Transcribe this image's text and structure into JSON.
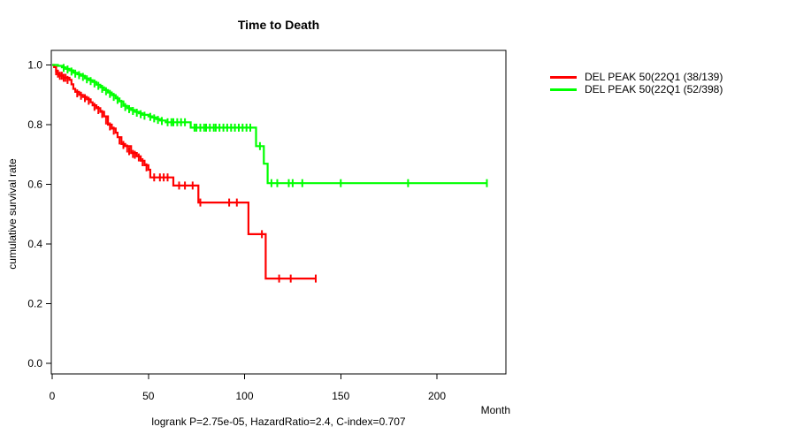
{
  "title": "Time to Death",
  "axes": {
    "x_label": "Month",
    "y_label": "cumulative survival rate"
  },
  "caption": "logrank P=2.75e-05, HazardRatio=2.4, C-index=0.707",
  "legend": {
    "position": "top-right",
    "items": [
      {
        "label": "DEL PEAK 50(22Q1 (38/139)",
        "color": "#ff0000"
      },
      {
        "label": "DEL PEAK 50(22Q1 (52/398)",
        "color": "#00ff00"
      }
    ]
  },
  "colors": {
    "background": "#ffffff",
    "axis": "#000000",
    "curve_group1": "#ff0000",
    "curve_group2": "#00ff00"
  },
  "chart_data": {
    "type": "line",
    "subtype": "kaplan-meier-step",
    "title": "Time to Death",
    "xlabel": "Month",
    "ylabel": "cumulative survival rate",
    "xlim": [
      0,
      236
    ],
    "ylim": [
      0,
      1.04
    ],
    "x_ticks": [
      0,
      50,
      100,
      150,
      200
    ],
    "y_ticks": [
      1.0,
      0.8,
      0.6,
      0.4,
      0.2,
      0.0
    ],
    "grid": false,
    "legend_position": "top-right",
    "annotation": "logrank P=2.75e-05, HazardRatio=2.4, C-index=0.707",
    "series": [
      {
        "name": "DEL PEAK 50(22Q1 (38/139)",
        "events_total": "38/139",
        "color": "#ff0000",
        "steps": [
          [
            0,
            1.0
          ],
          [
            1,
            0.993
          ],
          [
            2,
            0.979
          ],
          [
            3,
            0.971
          ],
          [
            4,
            0.964
          ],
          [
            6,
            0.957
          ],
          [
            9,
            0.95
          ],
          [
            10,
            0.935
          ],
          [
            11,
            0.92
          ],
          [
            12,
            0.91
          ],
          [
            14,
            0.9
          ],
          [
            16,
            0.893
          ],
          [
            18,
            0.885
          ],
          [
            20,
            0.875
          ],
          [
            21,
            0.865
          ],
          [
            23,
            0.855
          ],
          [
            25,
            0.843
          ],
          [
            27,
            0.828
          ],
          [
            29,
            0.8
          ],
          [
            31,
            0.787
          ],
          [
            33,
            0.773
          ],
          [
            34,
            0.758
          ],
          [
            36,
            0.735
          ],
          [
            38,
            0.728
          ],
          [
            41,
            0.705
          ],
          [
            44,
            0.694
          ],
          [
            46,
            0.679
          ],
          [
            48,
            0.664
          ],
          [
            50,
            0.649
          ],
          [
            51,
            0.623
          ],
          [
            63,
            0.596
          ],
          [
            76,
            0.539
          ],
          [
            102,
            0.433
          ],
          [
            111,
            0.284
          ],
          [
            137,
            0.284
          ]
        ],
        "censors": [
          [
            2,
            0.979
          ],
          [
            3,
            0.971
          ],
          [
            4,
            0.964
          ],
          [
            5,
            0.964
          ],
          [
            6,
            0.957
          ],
          [
            7,
            0.957
          ],
          [
            8,
            0.95
          ],
          [
            13,
            0.905
          ],
          [
            15,
            0.897
          ],
          [
            17,
            0.889
          ],
          [
            19,
            0.88
          ],
          [
            22,
            0.86
          ],
          [
            24,
            0.849
          ],
          [
            26,
            0.836
          ],
          [
            28,
            0.814
          ],
          [
            30,
            0.794
          ],
          [
            32,
            0.78
          ],
          [
            35,
            0.747
          ],
          [
            37,
            0.732
          ],
          [
            39,
            0.72
          ],
          [
            40,
            0.711
          ],
          [
            42,
            0.702
          ],
          [
            43,
            0.699
          ],
          [
            45,
            0.69
          ],
          [
            47,
            0.674
          ],
          [
            49,
            0.657
          ],
          [
            53,
            0.623
          ],
          [
            56,
            0.623
          ],
          [
            58,
            0.623
          ],
          [
            60,
            0.623
          ],
          [
            66,
            0.596
          ],
          [
            69,
            0.596
          ],
          [
            73,
            0.596
          ],
          [
            77,
            0.539
          ],
          [
            92,
            0.539
          ],
          [
            96,
            0.539
          ],
          [
            109,
            0.433
          ],
          [
            118,
            0.284
          ],
          [
            124,
            0.284
          ],
          [
            137,
            0.284
          ]
        ]
      },
      {
        "name": "DEL PEAK 50(22Q1 (52/398)",
        "events_total": "52/398",
        "color": "#00ff00",
        "steps": [
          [
            0,
            1.0
          ],
          [
            3,
            0.997
          ],
          [
            5,
            0.992
          ],
          [
            7,
            0.987
          ],
          [
            9,
            0.982
          ],
          [
            11,
            0.974
          ],
          [
            13,
            0.969
          ],
          [
            15,
            0.964
          ],
          [
            17,
            0.955
          ],
          [
            19,
            0.949
          ],
          [
            21,
            0.943
          ],
          [
            23,
            0.934
          ],
          [
            25,
            0.925
          ],
          [
            27,
            0.916
          ],
          [
            29,
            0.908
          ],
          [
            31,
            0.899
          ],
          [
            33,
            0.888
          ],
          [
            35,
            0.878
          ],
          [
            37,
            0.863
          ],
          [
            39,
            0.855
          ],
          [
            41,
            0.849
          ],
          [
            43,
            0.843
          ],
          [
            45,
            0.838
          ],
          [
            47,
            0.833
          ],
          [
            50,
            0.828
          ],
          [
            52,
            0.824
          ],
          [
            54,
            0.819
          ],
          [
            56,
            0.814
          ],
          [
            59,
            0.808
          ],
          [
            72,
            0.79
          ],
          [
            106,
            0.728
          ],
          [
            110,
            0.669
          ],
          [
            112,
            0.604
          ],
          [
            226,
            0.604
          ]
        ],
        "censors": [
          [
            6,
            0.99
          ],
          [
            8,
            0.985
          ],
          [
            10,
            0.978
          ],
          [
            12,
            0.971
          ],
          [
            14,
            0.966
          ],
          [
            16,
            0.96
          ],
          [
            18,
            0.952
          ],
          [
            20,
            0.946
          ],
          [
            22,
            0.938
          ],
          [
            24,
            0.93
          ],
          [
            26,
            0.92
          ],
          [
            28,
            0.912
          ],
          [
            30,
            0.903
          ],
          [
            32,
            0.893
          ],
          [
            34,
            0.883
          ],
          [
            36,
            0.87
          ],
          [
            38,
            0.859
          ],
          [
            40,
            0.852
          ],
          [
            42,
            0.846
          ],
          [
            44,
            0.84
          ],
          [
            46,
            0.835
          ],
          [
            48,
            0.83
          ],
          [
            51,
            0.826
          ],
          [
            53,
            0.821
          ],
          [
            55,
            0.816
          ],
          [
            57,
            0.812
          ],
          [
            60,
            0.808
          ],
          [
            62,
            0.808
          ],
          [
            63,
            0.808
          ],
          [
            65,
            0.808
          ],
          [
            67,
            0.808
          ],
          [
            69,
            0.808
          ],
          [
            74,
            0.79
          ],
          [
            75,
            0.79
          ],
          [
            77,
            0.79
          ],
          [
            79,
            0.79
          ],
          [
            80,
            0.79
          ],
          [
            82,
            0.79
          ],
          [
            84,
            0.79
          ],
          [
            85,
            0.79
          ],
          [
            87,
            0.79
          ],
          [
            89,
            0.79
          ],
          [
            91,
            0.79
          ],
          [
            93,
            0.79
          ],
          [
            95,
            0.79
          ],
          [
            97,
            0.79
          ],
          [
            99,
            0.79
          ],
          [
            101,
            0.79
          ],
          [
            103,
            0.79
          ],
          [
            108,
            0.728
          ],
          [
            114,
            0.604
          ],
          [
            117,
            0.604
          ],
          [
            123,
            0.604
          ],
          [
            125,
            0.604
          ],
          [
            130,
            0.604
          ],
          [
            150,
            0.604
          ],
          [
            185,
            0.604
          ],
          [
            226,
            0.604
          ]
        ]
      }
    ]
  }
}
